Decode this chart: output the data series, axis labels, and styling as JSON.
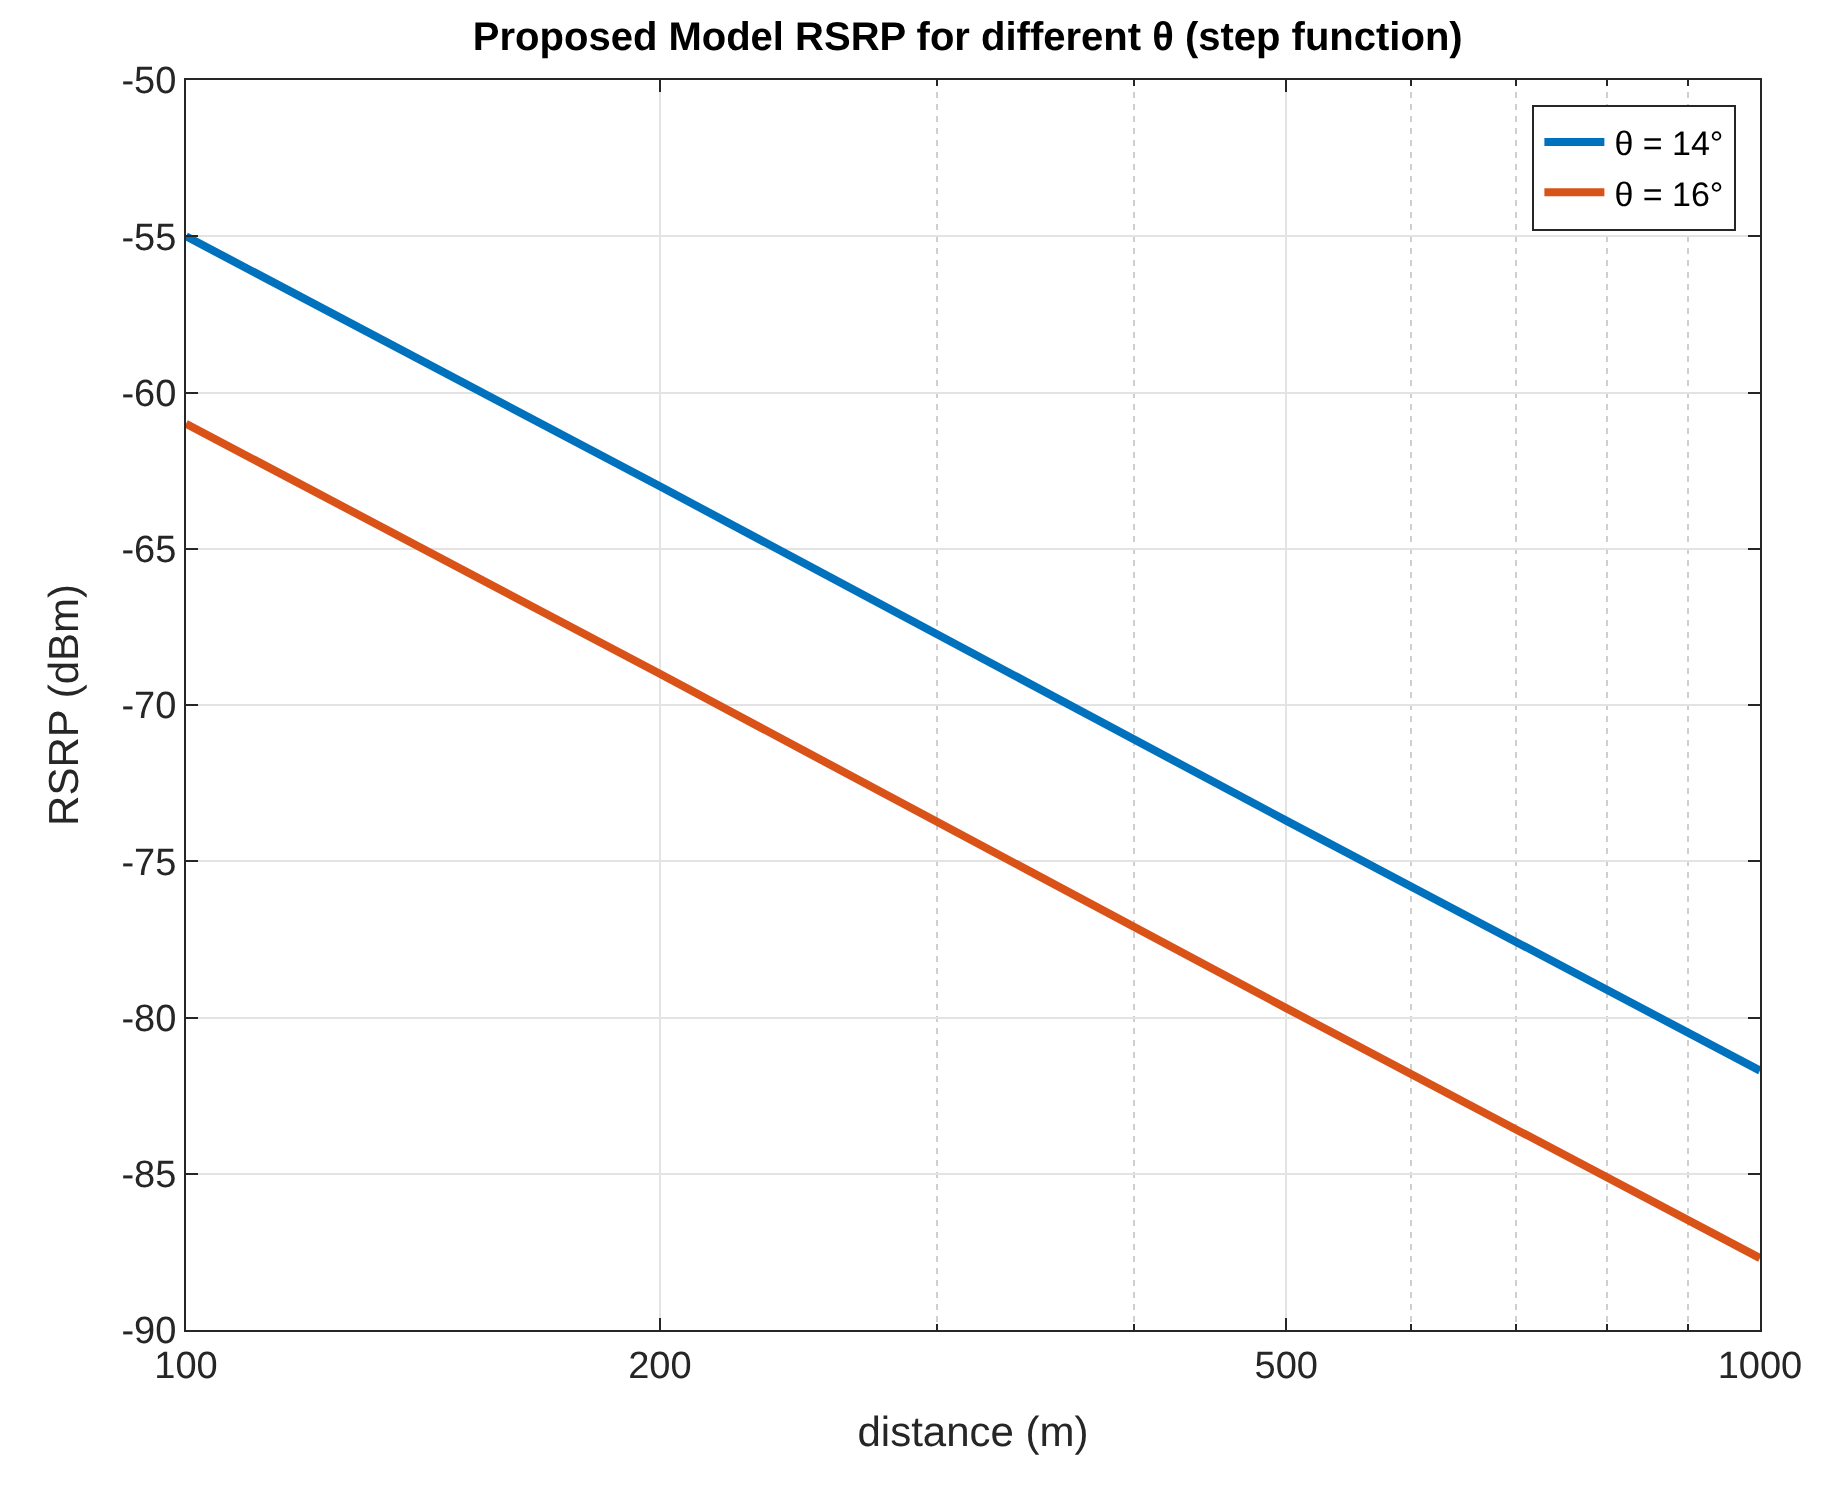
{
  "chart_data": {
    "type": "line",
    "title": "Proposed Model RSRP for different θ (step function)",
    "xlabel": "distance (m)",
    "ylabel": "RSRP (dBm)",
    "x": [
      100,
      200,
      500,
      1000
    ],
    "series": [
      {
        "name": "θ = 14°",
        "color": "#0072bd",
        "values": [
          -55,
          -63.0,
          -73.7,
          -81.7
        ]
      },
      {
        "name": "θ = 16°",
        "color": "#d95319",
        "values": [
          -61,
          -69.0,
          -79.7,
          -87.7
        ]
      }
    ],
    "log": "x",
    "xlim": [
      100,
      1000
    ],
    "xticks": [
      100,
      200,
      {
        "value": 300,
        "label": null
      },
      {
        "value": 400,
        "label": null
      },
      500,
      {
        "value": 600,
        "label": null
      },
      {
        "value": 700,
        "label": null
      },
      {
        "value": 800,
        "label": null
      },
      {
        "value": 900,
        "label": null
      },
      1000
    ],
    "ylim": [
      -90,
      -50
    ],
    "yticks": [
      -90,
      -85,
      -80,
      -75,
      -70,
      -65,
      -60,
      -55,
      -50
    ],
    "grid": true,
    "legend": "top right",
    "marker": "none",
    "line_style": "solid"
  }
}
